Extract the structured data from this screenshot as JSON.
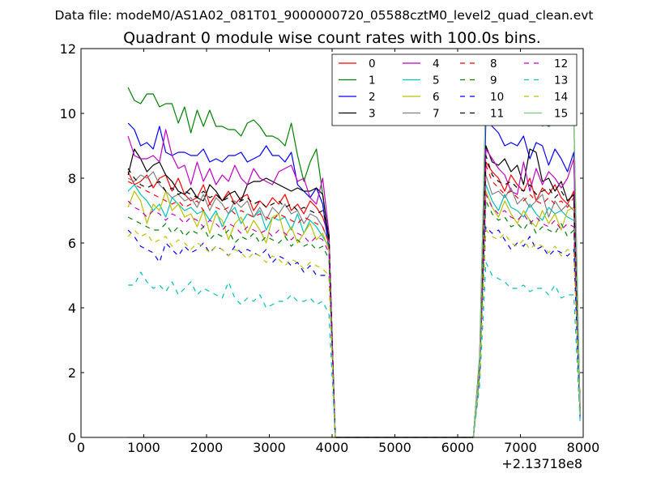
{
  "chart_data": {
    "type": "line",
    "suptitle": "Data file: modeM0/AS1A02_081T01_9000000720_05588cztM0_level2_quad_clean.evt",
    "title": "Quadrant 0 module wise count rates with 100.0s bins.",
    "xlabel": "",
    "ylabel": "",
    "x_offset_label": "+2.13718e8",
    "xlim": [
      0,
      8000
    ],
    "ylim": [
      0,
      12
    ],
    "xticks": [
      0,
      1000,
      2000,
      3000,
      4000,
      5000,
      6000,
      7000,
      8000
    ],
    "yticks": [
      0,
      2,
      4,
      6,
      8,
      10,
      12
    ],
    "grid": false,
    "legend_position": "top-right",
    "legend_columns": 4,
    "x": [
      750,
      850,
      950,
      1050,
      1150,
      1250,
      1350,
      1450,
      1550,
      1650,
      1750,
      1850,
      1950,
      2050,
      2150,
      2250,
      2350,
      2450,
      2550,
      2650,
      2750,
      2850,
      2950,
      3050,
      3150,
      3250,
      3350,
      3450,
      3550,
      3650,
      3750,
      3850,
      3950,
      4050,
      6250,
      6350,
      6450,
      6550,
      6650,
      6750,
      6850,
      6950,
      7050,
      7150,
      7250,
      7350,
      7450,
      7550,
      7650,
      7750,
      7850,
      7950
    ],
    "series": [
      {
        "name": "0",
        "color": "#ff0000",
        "dash": "solid",
        "values": [
          8.2,
          7.8,
          7.9,
          8.1,
          7.7,
          8.0,
          8.1,
          7.6,
          8.0,
          7.5,
          7.3,
          7.4,
          7.8,
          7.2,
          7.5,
          7.3,
          7.6,
          7.2,
          7.4,
          7.5,
          7.0,
          7.3,
          7.1,
          7.4,
          7.2,
          7.5,
          7.0,
          7.2,
          6.9,
          7.3,
          7.1,
          6.8,
          6.2,
          0.0,
          0.0,
          2.3,
          8.5,
          8.2,
          8.0,
          7.6,
          8.1,
          7.8,
          7.6,
          8.0,
          7.3,
          7.7,
          7.5,
          7.8,
          7.4,
          7.2,
          7.6,
          1.0
        ]
      },
      {
        "name": "1",
        "color": "#008000",
        "dash": "solid",
        "values": [
          10.8,
          10.4,
          10.3,
          10.6,
          10.6,
          10.2,
          10.3,
          10.3,
          9.7,
          10.2,
          9.4,
          10.1,
          9.6,
          10.1,
          9.6,
          9.6,
          9.5,
          9.5,
          9.3,
          9.7,
          9.8,
          9.6,
          9.3,
          9.3,
          9.2,
          9.0,
          9.7,
          8.7,
          7.9,
          8.5,
          8.9,
          7.5,
          6.0,
          0.0,
          0.0,
          2.5,
          10.7,
          10.1,
          10.0,
          9.8,
          9.9,
          9.8,
          9.9,
          10.0,
          9.8,
          9.7,
          9.6,
          9.7,
          10.0,
          9.7,
          9.9,
          0.7
        ]
      },
      {
        "name": "2",
        "color": "#0000ff",
        "dash": "solid",
        "values": [
          9.7,
          9.5,
          9.0,
          9.1,
          8.9,
          9.6,
          8.8,
          8.7,
          8.8,
          8.8,
          8.7,
          8.7,
          8.9,
          8.5,
          8.6,
          8.5,
          8.7,
          8.7,
          8.8,
          8.5,
          8.6,
          8.7,
          9.0,
          8.7,
          8.7,
          8.5,
          8.8,
          7.8,
          7.6,
          7.4,
          7.7,
          7.2,
          5.8,
          0.0,
          0.0,
          2.2,
          9.8,
          9.6,
          9.4,
          9.0,
          9.1,
          9.0,
          9.3,
          8.6,
          9.1,
          9.0,
          8.4,
          8.9,
          8.6,
          8.2,
          8.8,
          0.8
        ]
      },
      {
        "name": "3",
        "color": "#000000",
        "dash": "solid",
        "values": [
          8.1,
          8.9,
          8.6,
          8.2,
          8.4,
          8.5,
          8.1,
          7.9,
          7.6,
          7.5,
          7.7,
          7.4,
          7.3,
          7.8,
          7.6,
          7.3,
          7.5,
          7.6,
          7.3,
          7.8,
          7.9,
          7.9,
          8.0,
          7.9,
          7.8,
          7.7,
          7.6,
          7.7,
          7.6,
          7.6,
          7.7,
          7.5,
          6.1,
          0.0,
          0.0,
          2.4,
          9.0,
          8.5,
          8.4,
          8.6,
          8.2,
          8.4,
          7.8,
          8.9,
          8.8,
          7.9,
          8.0,
          7.6,
          7.9,
          7.3,
          7.5,
          0.9
        ]
      },
      {
        "name": "4",
        "color": "#bf00bf",
        "dash": "solid",
        "values": [
          9.3,
          8.7,
          8.6,
          8.6,
          8.7,
          8.5,
          9.5,
          8.7,
          8.3,
          8.4,
          7.8,
          8.5,
          7.9,
          8.3,
          7.8,
          8.1,
          7.9,
          8.4,
          8.0,
          7.8,
          8.3,
          8.0,
          7.9,
          7.8,
          8.2,
          8.3,
          8.4,
          7.9,
          8.0,
          7.4,
          7.2,
          8.0,
          6.3,
          0.0,
          0.0,
          2.3,
          8.9,
          8.6,
          8.3,
          8.1,
          7.6,
          7.5,
          8.5,
          7.6,
          8.3,
          7.8,
          8.2,
          8.0,
          7.7,
          8.0,
          8.6,
          0.8
        ]
      },
      {
        "name": "5",
        "color": "#00bfbf",
        "dash": "solid",
        "values": [
          7.6,
          7.8,
          7.5,
          7.3,
          7.0,
          7.2,
          6.8,
          7.4,
          7.2,
          7.0,
          7.1,
          6.9,
          7.0,
          6.7,
          7.0,
          6.5,
          6.9,
          7.1,
          6.6,
          6.9,
          6.8,
          7.0,
          6.4,
          6.8,
          6.7,
          6.8,
          6.4,
          6.9,
          6.3,
          6.7,
          6.5,
          6.2,
          5.9,
          0.0,
          0.0,
          2.1,
          7.8,
          7.3,
          7.0,
          7.5,
          7.1,
          7.0,
          6.8,
          7.2,
          6.9,
          6.7,
          7.1,
          6.9,
          7.0,
          6.8,
          6.7,
          0.7
        ]
      },
      {
        "name": "6",
        "color": "#bfbf00",
        "dash": "solid",
        "values": [
          7.1,
          7.6,
          7.3,
          6.6,
          7.2,
          7.0,
          7.6,
          7.0,
          7.2,
          6.8,
          6.9,
          6.5,
          7.0,
          6.3,
          6.9,
          6.7,
          6.1,
          6.6,
          6.8,
          6.3,
          6.7,
          6.4,
          6.0,
          6.8,
          6.9,
          6.2,
          6.5,
          6.0,
          6.3,
          6.6,
          6.1,
          6.3,
          5.8,
          0.0,
          0.0,
          2.1,
          7.6,
          7.1,
          6.8,
          7.3,
          6.9,
          6.6,
          7.0,
          6.7,
          6.5,
          7.0,
          6.6,
          6.9,
          6.4,
          7.0,
          7.1,
          0.8
        ]
      },
      {
        "name": "7",
        "color": "#808080",
        "dash": "solid",
        "values": [
          8.0,
          7.9,
          8.1,
          8.0,
          8.2,
          7.8,
          7.6,
          7.4,
          7.5,
          7.3,
          7.4,
          7.1,
          7.5,
          7.0,
          7.4,
          7.2,
          6.9,
          7.3,
          7.1,
          7.3,
          6.8,
          7.1,
          6.7,
          7.1,
          6.9,
          7.2,
          6.9,
          7.0,
          6.6,
          6.9,
          6.8,
          6.5,
          6.0,
          0.0,
          0.0,
          2.2,
          8.1,
          7.5,
          7.6,
          7.4,
          7.7,
          7.2,
          7.4,
          7.1,
          7.3,
          7.5,
          6.8,
          7.3,
          7.0,
          7.2,
          7.0,
          0.8
        ]
      },
      {
        "name": "8",
        "color": "#ff0000",
        "dash": "dashed",
        "values": [
          7.9,
          7.8,
          7.7,
          7.6,
          7.5,
          7.4,
          7.3,
          7.2,
          7.3,
          7.1,
          7.2,
          7.3,
          7.0,
          7.2,
          7.1,
          7.0,
          7.1,
          6.9,
          7.0,
          6.9,
          6.8,
          6.9,
          6.8,
          6.7,
          6.9,
          6.8,
          6.7,
          6.6,
          6.8,
          6.7,
          6.6,
          6.5,
          6.0,
          0.0,
          0.0,
          2.3,
          8.4,
          7.9,
          7.7,
          7.5,
          7.6,
          7.4,
          7.3,
          7.5,
          7.3,
          7.2,
          7.4,
          7.2,
          7.3,
          7.1,
          7.4,
          0.9
        ]
      },
      {
        "name": "9",
        "color": "#008000",
        "dash": "dashed",
        "values": [
          6.8,
          6.7,
          6.6,
          6.5,
          6.4,
          6.4,
          6.6,
          6.3,
          6.5,
          6.2,
          6.4,
          6.3,
          6.5,
          6.1,
          6.3,
          6.2,
          6.4,
          6.0,
          6.2,
          6.1,
          6.3,
          6.0,
          6.2,
          6.1,
          6.0,
          6.2,
          5.9,
          6.1,
          5.9,
          6.0,
          5.8,
          5.9,
          5.5,
          0.0,
          0.0,
          2.0,
          7.3,
          6.9,
          6.7,
          6.8,
          6.5,
          6.6,
          6.4,
          6.7,
          6.3,
          6.5,
          6.4,
          6.3,
          6.6,
          6.2,
          6.4,
          0.7
        ]
      },
      {
        "name": "10",
        "color": "#0000ff",
        "dash": "dashed",
        "values": [
          6.4,
          6.2,
          5.9,
          5.8,
          5.7,
          5.4,
          6.0,
          5.8,
          5.6,
          5.9,
          5.7,
          5.8,
          6.0,
          5.7,
          5.9,
          5.8,
          5.6,
          5.9,
          5.7,
          5.8,
          5.7,
          5.6,
          5.8,
          5.4,
          5.6,
          5.5,
          5.3,
          5.4,
          5.1,
          5.3,
          5.0,
          5.0,
          5.0,
          0.0,
          0.0,
          1.8,
          6.5,
          6.3,
          6.4,
          6.1,
          5.8,
          6.0,
          5.9,
          6.2,
          5.8,
          5.9,
          5.6,
          5.8,
          5.7,
          5.6,
          5.8,
          0.6
        ]
      },
      {
        "name": "11",
        "color": "#000000",
        "dash": "dashed",
        "values": [
          8.3,
          8.0,
          7.8,
          7.7,
          7.8,
          7.9,
          7.6,
          7.7,
          7.5,
          7.6,
          7.5,
          7.4,
          7.6,
          7.4,
          7.5,
          7.3,
          7.4,
          7.2,
          7.3,
          7.4,
          7.2,
          7.3,
          7.1,
          7.2,
          7.3,
          7.1,
          7.2,
          7.0,
          7.1,
          7.0,
          6.9,
          7.0,
          6.3,
          0.0,
          0.0,
          2.3,
          8.7,
          8.1,
          7.9,
          7.8,
          7.9,
          7.7,
          7.6,
          7.8,
          7.5,
          7.6,
          7.7,
          7.4,
          7.6,
          7.3,
          7.5,
          0.9
        ]
      },
      {
        "name": "12",
        "color": "#bf00bf",
        "dash": "dashed",
        "values": [
          7.3,
          7.1,
          7.0,
          6.8,
          7.0,
          6.9,
          6.7,
          6.9,
          6.8,
          6.6,
          6.8,
          6.7,
          6.5,
          6.7,
          6.6,
          6.4,
          6.6,
          6.5,
          6.3,
          6.5,
          6.4,
          6.3,
          6.4,
          6.2,
          6.4,
          6.3,
          6.1,
          6.3,
          6.2,
          6.0,
          6.2,
          6.1,
          5.7,
          0.0,
          0.0,
          2.1,
          7.5,
          7.1,
          6.9,
          7.0,
          6.8,
          6.7,
          6.9,
          6.6,
          6.8,
          6.6,
          6.5,
          6.7,
          6.4,
          6.6,
          6.5,
          0.8
        ]
      },
      {
        "name": "13",
        "color": "#00bfbf",
        "dash": "dashed",
        "values": [
          4.7,
          4.7,
          5.1,
          4.8,
          4.6,
          4.7,
          4.5,
          4.8,
          4.4,
          4.6,
          4.8,
          4.4,
          4.6,
          4.5,
          4.4,
          4.3,
          4.8,
          4.3,
          4.1,
          4.3,
          4.2,
          4.4,
          4.0,
          4.1,
          4.2,
          4.2,
          4.4,
          4.2,
          4.2,
          4.3,
          4.1,
          4.2,
          3.8,
          0.0,
          0.0,
          1.6,
          5.4,
          5.0,
          4.9,
          4.8,
          4.6,
          4.6,
          4.7,
          4.5,
          4.6,
          4.6,
          4.4,
          4.7,
          4.3,
          4.4,
          4.4,
          0.5
        ]
      },
      {
        "name": "14",
        "color": "#bfbf00",
        "dash": "dashed",
        "values": [
          6.2,
          6.4,
          6.2,
          6.3,
          6.0,
          6.1,
          6.2,
          5.9,
          6.1,
          6.0,
          5.8,
          6.0,
          5.9,
          5.7,
          5.9,
          5.8,
          5.6,
          5.8,
          5.7,
          5.5,
          5.7,
          5.6,
          5.4,
          5.6,
          5.5,
          5.3,
          5.5,
          5.4,
          5.2,
          5.4,
          5.3,
          5.2,
          5.0,
          0.0,
          0.0,
          1.9,
          6.4,
          6.2,
          6.1,
          6.3,
          6.0,
          5.9,
          6.1,
          5.8,
          6.0,
          5.9,
          5.7,
          5.9,
          5.6,
          5.8,
          5.7,
          0.7
        ]
      },
      {
        "name": "15",
        "color": "#80c080",
        "dash": "solid",
        "values": [
          0,
          0,
          0,
          0,
          0,
          0,
          0,
          0,
          0,
          0,
          0,
          0,
          0,
          0,
          0,
          0,
          0,
          0,
          0,
          0,
          0,
          0,
          0,
          0,
          0,
          0,
          0,
          0,
          0,
          0,
          0,
          0,
          0,
          0,
          0.0,
          2.4,
          10.7,
          10.1,
          10.2,
          9.9,
          9.9,
          9.8,
          9.9,
          10.0,
          10.6,
          9.6,
          9.7,
          9.7,
          10.1,
          9.7,
          9.9,
          0.7
        ]
      }
    ]
  }
}
